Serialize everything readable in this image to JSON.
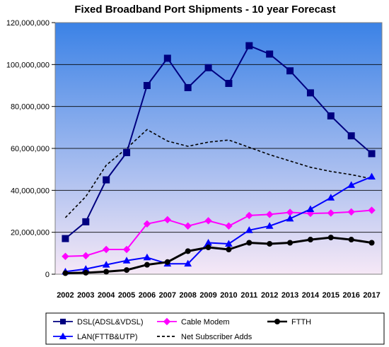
{
  "chart_data": {
    "type": "line",
    "title": "Fixed Broadband Port Shipments - 10 year Forecast",
    "xlabel": "",
    "ylabel": "",
    "ylim": [
      0,
      120000000
    ],
    "y_ticks": [
      0,
      20000000,
      40000000,
      60000000,
      80000000,
      100000000,
      120000000
    ],
    "y_tick_labels": [
      "0",
      "20,000,000",
      "40,000,000",
      "60,000,000",
      "80,000,000",
      "100,000,000",
      "120,000,000"
    ],
    "categories": [
      "2002",
      "2003",
      "2004",
      "2005",
      "2006",
      "2007",
      "2008",
      "2009",
      "2010",
      "2011",
      "2012",
      "2013",
      "2014",
      "2015",
      "2016",
      "2017"
    ],
    "grid": true,
    "legend_position": "bottom",
    "background_gradient": [
      "#3b82e6",
      "#f6e8f6"
    ],
    "series": [
      {
        "name": "DSL(ADSL&VDSL)",
        "color": "#000080",
        "marker": "square",
        "line_style": "solid",
        "values": [
          17000000,
          25000000,
          45000000,
          58000000,
          90000000,
          103000000,
          89000000,
          98500000,
          91000000,
          109000000,
          105000000,
          97000000,
          86500000,
          75500000,
          66000000,
          57500000
        ]
      },
      {
        "name": "Cable Modem",
        "color": "#ff00ff",
        "marker": "diamond",
        "line_style": "solid",
        "values": [
          8500000,
          8800000,
          11800000,
          11800000,
          24000000,
          26000000,
          23000000,
          25500000,
          23000000,
          28000000,
          28500000,
          29500000,
          29000000,
          29200000,
          29700000,
          30500000
        ]
      },
      {
        "name": "FTTH",
        "color": "#000000",
        "marker": "circle",
        "line_style": "solid",
        "values": [
          500000,
          700000,
          1200000,
          2000000,
          4500000,
          5800000,
          11000000,
          12800000,
          11800000,
          15000000,
          14500000,
          15000000,
          16500000,
          17500000,
          16500000,
          15000000
        ]
      },
      {
        "name": "LAN(FTTB&UTP)",
        "color": "#0000ff",
        "marker": "triangle",
        "line_style": "solid",
        "values": [
          1200000,
          2500000,
          4500000,
          6500000,
          8000000,
          5000000,
          5000000,
          15000000,
          14500000,
          21000000,
          23000000,
          26500000,
          31000000,
          36500000,
          42500000,
          46500000
        ]
      },
      {
        "name": "Net Subscriber Adds",
        "color": "#000000",
        "marker": "none",
        "line_style": "dashed",
        "values": [
          27000000,
          37000000,
          52000000,
          60000000,
          69000000,
          63500000,
          61000000,
          63000000,
          64000000,
          60500000,
          57000000,
          54000000,
          51000000,
          49000000,
          47500000,
          45500000
        ]
      }
    ]
  }
}
